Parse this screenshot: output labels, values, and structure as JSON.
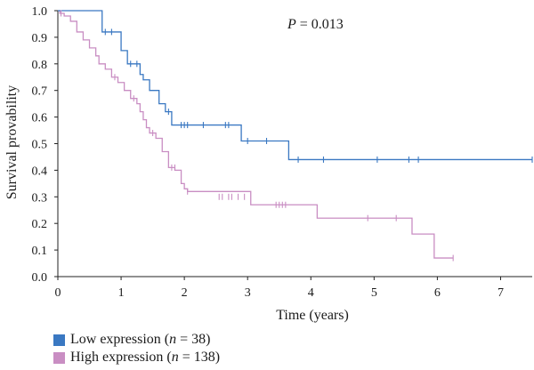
{
  "chart_data": {
    "type": "line",
    "step": true,
    "title": "",
    "annotation": "P = 0.013",
    "xlabel": "Time (years)",
    "ylabel": "Survival provability",
    "xlim": [
      0,
      7.5
    ],
    "ylim": [
      0,
      1.0
    ],
    "x_ticks": [
      "0",
      "1",
      "2",
      "3",
      "4",
      "5",
      "6",
      "7"
    ],
    "y_ticks": [
      "0.0",
      "0.1",
      "0.2",
      "0.3",
      "0.4",
      "0.5",
      "0.6",
      "0.7",
      "0.8",
      "0.9",
      "1.0"
    ],
    "grid": false,
    "legend_position": "bottom-left",
    "series": [
      {
        "name": "Low expression (n = 38)",
        "name_prefix": "Low expression (",
        "name_n": "n",
        "name_suffix": " = 38)",
        "color": "#3a78c2",
        "steps": [
          [
            0,
            1.0
          ],
          [
            0.7,
            0.92
          ],
          [
            0.9,
            0.92
          ],
          [
            1.0,
            0.85
          ],
          [
            1.1,
            0.8
          ],
          [
            1.3,
            0.76
          ],
          [
            1.35,
            0.74
          ],
          [
            1.45,
            0.7
          ],
          [
            1.6,
            0.65
          ],
          [
            1.7,
            0.62
          ],
          [
            1.8,
            0.57
          ],
          [
            2.9,
            0.51
          ],
          [
            3.65,
            0.44
          ],
          [
            7.5,
            0.44
          ]
        ],
        "censored": [
          [
            0.75,
            0.92
          ],
          [
            0.85,
            0.92
          ],
          [
            1.15,
            0.8
          ],
          [
            1.25,
            0.8
          ],
          [
            1.75,
            0.62
          ],
          [
            1.95,
            0.57
          ],
          [
            2.0,
            0.57
          ],
          [
            2.05,
            0.57
          ],
          [
            2.3,
            0.57
          ],
          [
            2.65,
            0.57
          ],
          [
            2.7,
            0.57
          ],
          [
            3.0,
            0.51
          ],
          [
            3.3,
            0.51
          ],
          [
            3.8,
            0.44
          ],
          [
            4.2,
            0.44
          ],
          [
            5.05,
            0.44
          ],
          [
            5.55,
            0.44
          ],
          [
            5.7,
            0.44
          ],
          [
            7.5,
            0.44
          ]
        ]
      },
      {
        "name": "High expression (n = 138)",
        "name_prefix": "High expression (",
        "name_n": "n",
        "name_suffix": " = 138)",
        "color": "#c98ec3",
        "steps": [
          [
            0,
            1.0
          ],
          [
            0.03,
            0.99
          ],
          [
            0.1,
            0.98
          ],
          [
            0.2,
            0.96
          ],
          [
            0.3,
            0.92
          ],
          [
            0.4,
            0.89
          ],
          [
            0.5,
            0.86
          ],
          [
            0.6,
            0.83
          ],
          [
            0.65,
            0.8
          ],
          [
            0.75,
            0.78
          ],
          [
            0.85,
            0.75
          ],
          [
            0.95,
            0.73
          ],
          [
            1.05,
            0.7
          ],
          [
            1.15,
            0.67
          ],
          [
            1.25,
            0.65
          ],
          [
            1.3,
            0.62
          ],
          [
            1.35,
            0.59
          ],
          [
            1.4,
            0.56
          ],
          [
            1.45,
            0.54
          ],
          [
            1.55,
            0.52
          ],
          [
            1.65,
            0.47
          ],
          [
            1.75,
            0.41
          ],
          [
            1.85,
            0.4
          ],
          [
            1.95,
            0.35
          ],
          [
            2.0,
            0.33
          ],
          [
            2.05,
            0.32
          ],
          [
            3.05,
            0.27
          ],
          [
            3.65,
            0.27
          ],
          [
            4.1,
            0.22
          ],
          [
            5.6,
            0.16
          ],
          [
            5.95,
            0.07
          ],
          [
            6.25,
            0.07
          ]
        ],
        "censored": [
          [
            0.05,
            0.99
          ],
          [
            0.9,
            0.75
          ],
          [
            1.2,
            0.67
          ],
          [
            1.5,
            0.54
          ],
          [
            1.8,
            0.41
          ],
          [
            1.85,
            0.41
          ],
          [
            2.05,
            0.32
          ],
          [
            2.55,
            0.3
          ],
          [
            2.6,
            0.3
          ],
          [
            2.7,
            0.3
          ],
          [
            2.75,
            0.3
          ],
          [
            2.85,
            0.3
          ],
          [
            2.95,
            0.3
          ],
          [
            3.45,
            0.27
          ],
          [
            3.5,
            0.27
          ],
          [
            3.55,
            0.27
          ],
          [
            3.6,
            0.27
          ],
          [
            4.9,
            0.22
          ],
          [
            5.35,
            0.22
          ],
          [
            6.25,
            0.07
          ]
        ]
      }
    ]
  }
}
